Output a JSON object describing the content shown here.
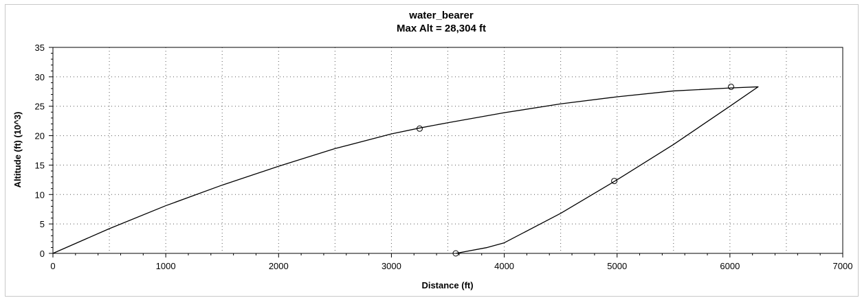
{
  "chart_data": {
    "type": "line",
    "title": "water_bearer",
    "subtitle": "Max Alt = 28,304 ft",
    "xlabel": "Distance (ft)",
    "ylabel": "Altitude (ft) (10^3)",
    "xlim": [
      0,
      7000
    ],
    "ylim": [
      0,
      35
    ],
    "xticks": [
      0,
      1000,
      2000,
      3000,
      4000,
      5000,
      6000,
      7000
    ],
    "yticks": [
      0,
      5,
      10,
      15,
      20,
      25,
      30,
      35
    ],
    "xtick_labels": [
      "0",
      "1000",
      "2000",
      "3000",
      "4000",
      "5000",
      "6000",
      "7000"
    ],
    "ytick_labels": [
      "0",
      "5",
      "10",
      "15",
      "20",
      "25",
      "30",
      "35"
    ],
    "grid": true,
    "series": [
      {
        "color": "#000000",
        "x": [
          0,
          500,
          1000,
          1500,
          2000,
          2500,
          3000,
          3250,
          3500,
          4000,
          4500,
          5000,
          5500,
          6000,
          6250,
          6000,
          5500,
          5000,
          4500,
          4000,
          3850,
          3570
        ],
        "y": [
          0,
          4.2,
          8.1,
          11.6,
          14.8,
          17.8,
          20.3,
          21.3,
          22.2,
          23.9,
          25.4,
          26.6,
          27.6,
          28.1,
          28.3,
          25.0,
          18.5,
          12.5,
          6.8,
          1.8,
          1.0,
          0
        ]
      }
    ],
    "markers": {
      "shape": "open-circle",
      "x": [
        3250,
        4975,
        6010,
        3570
      ],
      "y": [
        21.2,
        12.3,
        28.3,
        0
      ]
    }
  }
}
